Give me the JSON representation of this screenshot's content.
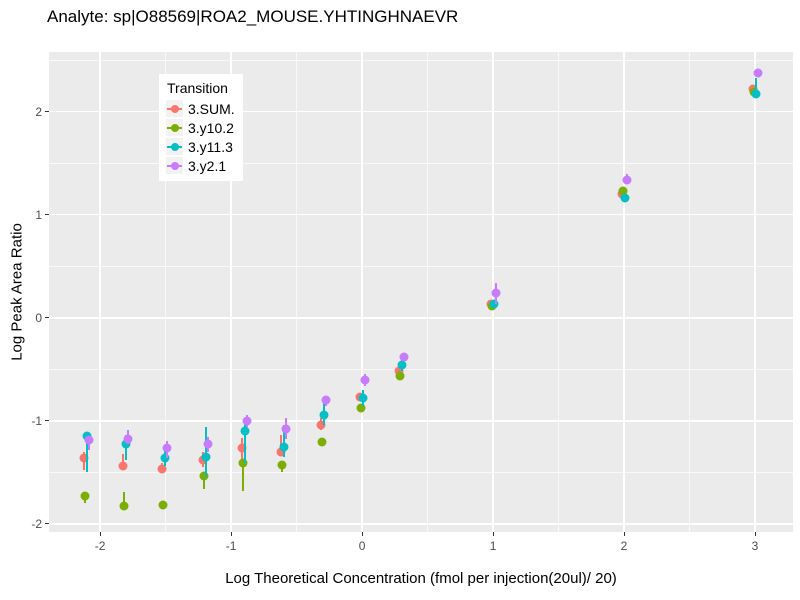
{
  "chart_data": {
    "type": "scatter",
    "title": "Analyte: sp|O88569|ROA2_MOUSE.YHTINGHNAEVR",
    "xlabel": "Log Theoretical Concentration (fmol per injection(20ul)/ 20)",
    "ylabel": "Log Peak Area Ratio",
    "legend_title": "Transition",
    "legend_position": "inside-top-left",
    "grid": "on",
    "panel_bg": "#EBEBEB",
    "grid_color": "#FFFFFF",
    "tick_label_color": "#4D4D4D",
    "xlim": [
      -2.39,
      3.29
    ],
    "ylim": [
      -2.08,
      2.58
    ],
    "x_ticks": [
      -2,
      -1,
      0,
      1,
      2,
      3
    ],
    "y_ticks": [
      -2,
      -1,
      0,
      1,
      2
    ],
    "x_minor_ticks": [
      -1.5,
      -0.5,
      0.5,
      1.5,
      2.5
    ],
    "y_minor_ticks": [
      -1.5,
      -0.5,
      0.5,
      1.5,
      2.5
    ],
    "x": [
      -2.11,
      -1.81,
      -1.51,
      -1.2,
      -0.9,
      -0.6,
      -0.3,
      0,
      0.3,
      1,
      2,
      3
    ],
    "series": [
      {
        "name": "3.SUM.",
        "color": "#F8766D",
        "y": [
          -1.36,
          -1.44,
          -1.47,
          -1.38,
          -1.26,
          -1.3,
          -1.04,
          -0.77,
          -0.52,
          0.13,
          1.2,
          2.22
        ],
        "ymin": [
          -1.48,
          -1.47,
          -1.51,
          -1.45,
          -1.37,
          -1.34,
          -1.09,
          -0.81,
          -0.55,
          0.1,
          1.17,
          2.19
        ],
        "ymax": [
          -1.3,
          -1.32,
          -1.41,
          -1.3,
          -1.17,
          -1.14,
          -0.97,
          -0.73,
          -0.49,
          0.16,
          1.23,
          2.25
        ]
      },
      {
        "name": "3.y10.2",
        "color": "#7CAE00",
        "y": [
          -1.73,
          -1.83,
          -1.82,
          -1.54,
          -1.41,
          -1.43,
          -1.21,
          -0.88,
          -0.57,
          0.11,
          1.23,
          2.19
        ],
        "ymin": [
          -1.8,
          -1.86,
          -1.84,
          -1.66,
          -1.68,
          -1.5,
          -1.23,
          -0.9,
          -0.6,
          0.09,
          1.2,
          2.16
        ],
        "ymax": [
          -1.71,
          -1.69,
          -1.8,
          -1.51,
          -1.38,
          -1.4,
          -1.19,
          -0.86,
          -0.54,
          0.13,
          1.26,
          2.22
        ]
      },
      {
        "name": "3.y11.3",
        "color": "#00BFC4",
        "y": [
          -1.15,
          -1.23,
          -1.36,
          -1.35,
          -1.1,
          -1.25,
          -0.94,
          -0.78,
          -0.46,
          0.13,
          1.16,
          2.17
        ],
        "ymin": [
          -1.5,
          -1.38,
          -1.44,
          -1.55,
          -1.41,
          -1.35,
          -1.04,
          -0.86,
          -0.52,
          0.1,
          1.13,
          2.15
        ],
        "ymax": [
          -1.13,
          -1.14,
          -1.26,
          -1.06,
          -1.02,
          -1.04,
          -0.8,
          -0.7,
          -0.4,
          0.16,
          1.19,
          2.33
        ]
      },
      {
        "name": "3.y2.1",
        "color": "#C77CFF",
        "y": [
          -1.19,
          -1.18,
          -1.26,
          -1.23,
          -1.0,
          -1.08,
          -0.8,
          -0.6,
          -0.38,
          0.24,
          1.34,
          2.38
        ],
        "ymin": [
          -1.28,
          -1.23,
          -1.36,
          -1.3,
          -1.06,
          -1.18,
          -0.86,
          -0.66,
          -0.41,
          0.13,
          1.3,
          2.35
        ],
        "ymax": [
          -1.15,
          -1.09,
          -1.2,
          -1.16,
          -0.94,
          -0.97,
          -0.76,
          -0.55,
          -0.35,
          0.34,
          1.4,
          2.41
        ]
      }
    ]
  }
}
